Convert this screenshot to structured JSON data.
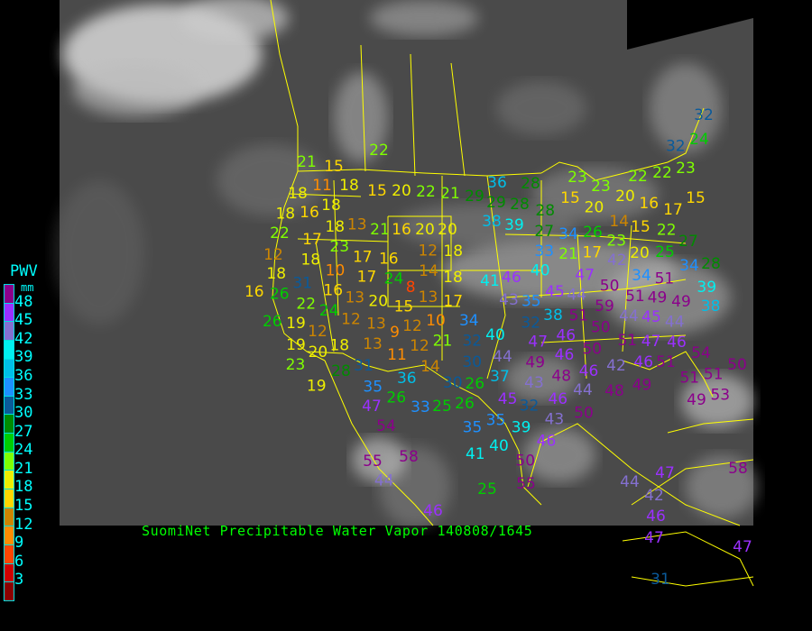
{
  "caption": "SuomiNet Precipitable Water Vapor 140808/1645",
  "legend": {
    "title": "PWV",
    "unit": "mm",
    "labels": [
      "48",
      "45",
      "42",
      "39",
      "36",
      "33",
      "30",
      "27",
      "24",
      "21",
      "18",
      "15",
      "12",
      "9",
      "6",
      "3"
    ],
    "colors": [
      "#8b008b",
      "#9b30ff",
      "#8470d0",
      "#00f0f0",
      "#00bfe8",
      "#1e90ff",
      "#0a5a9a",
      "#008b00",
      "#00cd00",
      "#7fff00",
      "#eeee00",
      "#ffd700",
      "#cd8500",
      "#ff8c00",
      "#ff4500",
      "#d00000",
      "#8b0000"
    ]
  },
  "map": {
    "background": "#4a4a4a",
    "border_color": "#ffff00",
    "stations": [
      21,
      15,
      11,
      18,
      15,
      20,
      22,
      21,
      29,
      18,
      16,
      18,
      18,
      18,
      17,
      22,
      18,
      23,
      13,
      21,
      16,
      20,
      20,
      12,
      12,
      10,
      17,
      17,
      16,
      24,
      18,
      14,
      18,
      18,
      31,
      26,
      16,
      13,
      16,
      22,
      24,
      12,
      20,
      13,
      15,
      13,
      17,
      8,
      19,
      26,
      12,
      9,
      10,
      12,
      19,
      13,
      12,
      11,
      21,
      18,
      20,
      31,
      23,
      28,
      19,
      35,
      14,
      36,
      26,
      34,
      32,
      30,
      26,
      36,
      29,
      28,
      28,
      28,
      27,
      38,
      39,
      33,
      34,
      26,
      23,
      15,
      23,
      20,
      20,
      14,
      21,
      17,
      23,
      15,
      16,
      17,
      20,
      22,
      22,
      23,
      15,
      22,
      25,
      27,
      47,
      42,
      34,
      40,
      45,
      44,
      50,
      51,
      51,
      46,
      35,
      38,
      51,
      59,
      32,
      50,
      44,
      49,
      49,
      51,
      34,
      28,
      39,
      38,
      43,
      47,
      46,
      50,
      45,
      44,
      40,
      44,
      49,
      46,
      47,
      42,
      46,
      30,
      37,
      43,
      48,
      46,
      46,
      51,
      54,
      45,
      46,
      44,
      48,
      49,
      26,
      35,
      32,
      50,
      25,
      51,
      51,
      49,
      53,
      50,
      47,
      33,
      35,
      39,
      40,
      43,
      46,
      50,
      41,
      54,
      58,
      55,
      44,
      25,
      55,
      46,
      58,
      47,
      44,
      42,
      46,
      47,
      47,
      31,
      32,
      24,
      32,
      22,
      41
    ]
  }
}
